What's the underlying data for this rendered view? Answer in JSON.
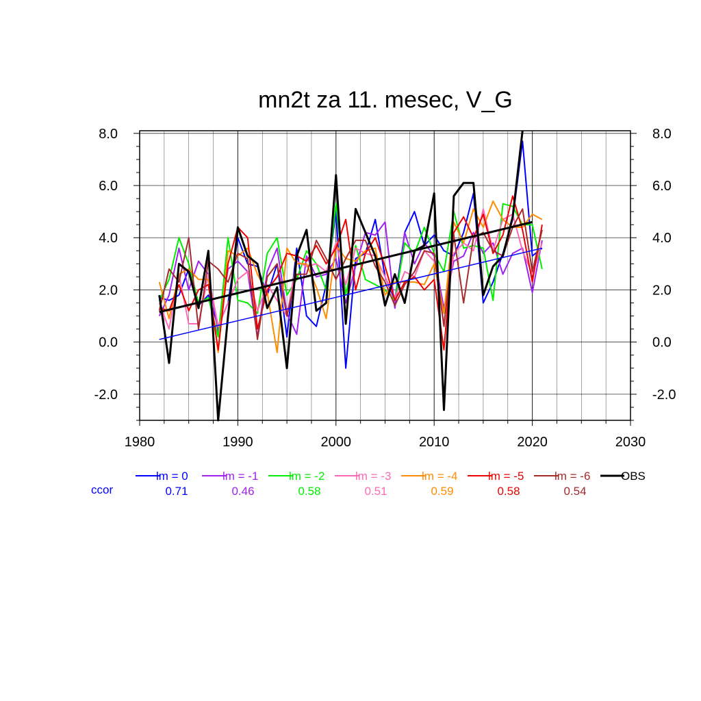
{
  "chart_data": {
    "type": "line",
    "title": "mn2t za 11. mesec, V_G",
    "xlabel": "",
    "ylabel": "",
    "xlim": [
      1980,
      2030
    ],
    "ylim": [
      -3.0,
      8.1
    ],
    "x_ticks": [
      "1980",
      "1990",
      "2000",
      "2010",
      "2020",
      "2030"
    ],
    "y_ticks": [
      "-2.0",
      "0.0",
      "2.0",
      "4.0",
      "6.0",
      "8.0"
    ],
    "grid": true,
    "legend_placement": "bottom",
    "ccor_label": "ccor",
    "x": [
      1982,
      1983,
      1984,
      1985,
      1986,
      1987,
      1988,
      1989,
      1990,
      1991,
      1992,
      1993,
      1994,
      1995,
      1996,
      1997,
      1998,
      1999,
      2000,
      2001,
      2002,
      2003,
      2004,
      2005,
      2006,
      2007,
      2008,
      2009,
      2010,
      2011,
      2012,
      2013,
      2014,
      2015,
      2016,
      2017,
      2018,
      2019,
      2020,
      2021
    ],
    "series": [
      {
        "name": "lm = 0",
        "ccor": "0.71",
        "color": "#0000ff",
        "values": [
          1.7,
          1.6,
          1.8,
          2.8,
          1.4,
          1.8,
          0.6,
          1.5,
          4.0,
          3.0,
          2.9,
          1.8,
          3.0,
          0.2,
          3.6,
          1.0,
          0.6,
          2.2,
          5.0,
          -1.0,
          3.2,
          3.4,
          4.7,
          2.5,
          1.6,
          4.2,
          5.0,
          3.7,
          4.1,
          3.5,
          3.3,
          4.2,
          5.7,
          1.5,
          2.3,
          3.4,
          4.7,
          7.7,
          3.3,
          3.6
        ]
      },
      {
        "name": "lm = -1",
        "ccor": "0.46",
        "color": "#a020f0",
        "values": [
          1.0,
          1.8,
          3.6,
          2.0,
          3.1,
          2.6,
          0.4,
          2.8,
          3.1,
          2.7,
          0.2,
          2.7,
          3.6,
          1.1,
          0.3,
          3.3,
          2.5,
          2.6,
          3.2,
          1.5,
          2.9,
          4.2,
          4.1,
          4.6,
          1.3,
          4.2,
          3.0,
          3.8,
          3.3,
          1.3,
          3.1,
          3.3,
          4.2,
          3.4,
          3.8,
          2.6,
          3.4,
          3.6,
          1.9,
          3.9
        ]
      },
      {
        "name": "lm = -2",
        "ccor": "0.58",
        "color": "#00ee00",
        "values": [
          1.6,
          2.4,
          4.0,
          3.0,
          1.5,
          1.7,
          0.2,
          4.0,
          1.6,
          1.5,
          1.1,
          3.4,
          4.0,
          1.8,
          2.4,
          3.5,
          3.0,
          2.0,
          5.3,
          1.8,
          3.7,
          2.4,
          2.2,
          2.0,
          1.6,
          3.8,
          3.4,
          4.4,
          3.4,
          2.7,
          5.0,
          3.6,
          3.7,
          3.6,
          1.6,
          5.3,
          5.2,
          4.5,
          4.5,
          2.8
        ]
      },
      {
        "name": "lm = -3",
        "ccor": "0.51",
        "color": "#ff69b4",
        "values": [
          1.5,
          0.5,
          2.6,
          0.7,
          0.7,
          2.6,
          0.6,
          1.5,
          2.4,
          2.7,
          1.2,
          2.2,
          1.6,
          1.0,
          3.1,
          2.9,
          3.0,
          2.7,
          3.8,
          2.2,
          3.6,
          3.4,
          3.3,
          2.5,
          1.7,
          2.7,
          2.5,
          3.5,
          3.1,
          0.7,
          3.4,
          3.8,
          3.5,
          5.1,
          3.5,
          4.7,
          4.9,
          3.5,
          2.6,
          3.8
        ]
      },
      {
        "name": "lm = -4",
        "ccor": "0.59",
        "color": "#ff8c00",
        "values": [
          2.3,
          0.9,
          2.6,
          2.8,
          2.4,
          2.4,
          -0.4,
          3.5,
          3.3,
          3.6,
          2.6,
          1.9,
          -0.4,
          3.6,
          3.0,
          3.0,
          2.1,
          0.9,
          3.7,
          3.2,
          3.1,
          3.5,
          3.6,
          1.8,
          2.3,
          2.3,
          2.3,
          2.2,
          3.0,
          1.1,
          4.6,
          3.8,
          5.1,
          4.4,
          5.4,
          4.7,
          4.4,
          4.4,
          4.9,
          4.7
        ]
      },
      {
        "name": "lm = -5",
        "ccor": "0.58",
        "color": "#ee0000",
        "values": [
          1.3,
          1.2,
          2.2,
          1.2,
          2.0,
          2.2,
          -0.3,
          3.0,
          4.4,
          4.0,
          0.5,
          2.0,
          2.5,
          3.4,
          3.3,
          3.1,
          3.7,
          3.0,
          3.6,
          4.7,
          2.0,
          3.4,
          4.0,
          2.9,
          1.6,
          2.3,
          2.5,
          2.0,
          2.4,
          -0.3,
          4.2,
          4.8,
          4.0,
          4.9,
          3.4,
          4.1,
          5.6,
          4.3,
          2.3,
          4.5
        ]
      },
      {
        "name": "lm = -6",
        "ccor": "0.54",
        "color": "#a52a2a",
        "values": [
          1.2,
          2.8,
          2.3,
          4.0,
          0.5,
          3.1,
          2.8,
          2.3,
          3.4,
          3.2,
          0.1,
          2.5,
          3.0,
          1.0,
          2.6,
          2.6,
          3.9,
          3.2,
          2.4,
          3.2,
          3.9,
          3.9,
          2.9,
          2.3,
          1.4,
          2.2,
          2.7,
          3.5,
          3.4,
          0.6,
          4.1,
          1.5,
          4.0,
          4.2,
          3.5,
          3.3,
          4.4,
          5.1,
          2.7,
          4.3
        ]
      },
      {
        "name": "OBS",
        "ccor": "",
        "color": "#000000",
        "values": [
          1.8,
          -0.8,
          3.0,
          2.7,
          1.3,
          3.5,
          -3.0,
          1.0,
          4.4,
          3.3,
          3.0,
          1.3,
          2.1,
          -1.0,
          3.3,
          4.3,
          1.2,
          1.5,
          6.4,
          0.7,
          5.1,
          4.2,
          3.3,
          1.4,
          2.6,
          1.5,
          3.5,
          3.7,
          5.7,
          -2.6,
          5.6,
          6.1,
          6.1,
          1.8,
          2.9,
          3.3,
          4.8,
          8.1,
          null,
          null
        ]
      }
    ],
    "trend_lines": [
      {
        "series": "lm = 0",
        "x": [
          1982,
          2021
        ],
        "y": [
          0.1,
          3.6
        ],
        "color": "#0000ff"
      },
      {
        "series": "OBS",
        "x": [
          1982,
          2020
        ],
        "y": [
          1.15,
          4.6
        ],
        "color": "#000000"
      }
    ]
  }
}
